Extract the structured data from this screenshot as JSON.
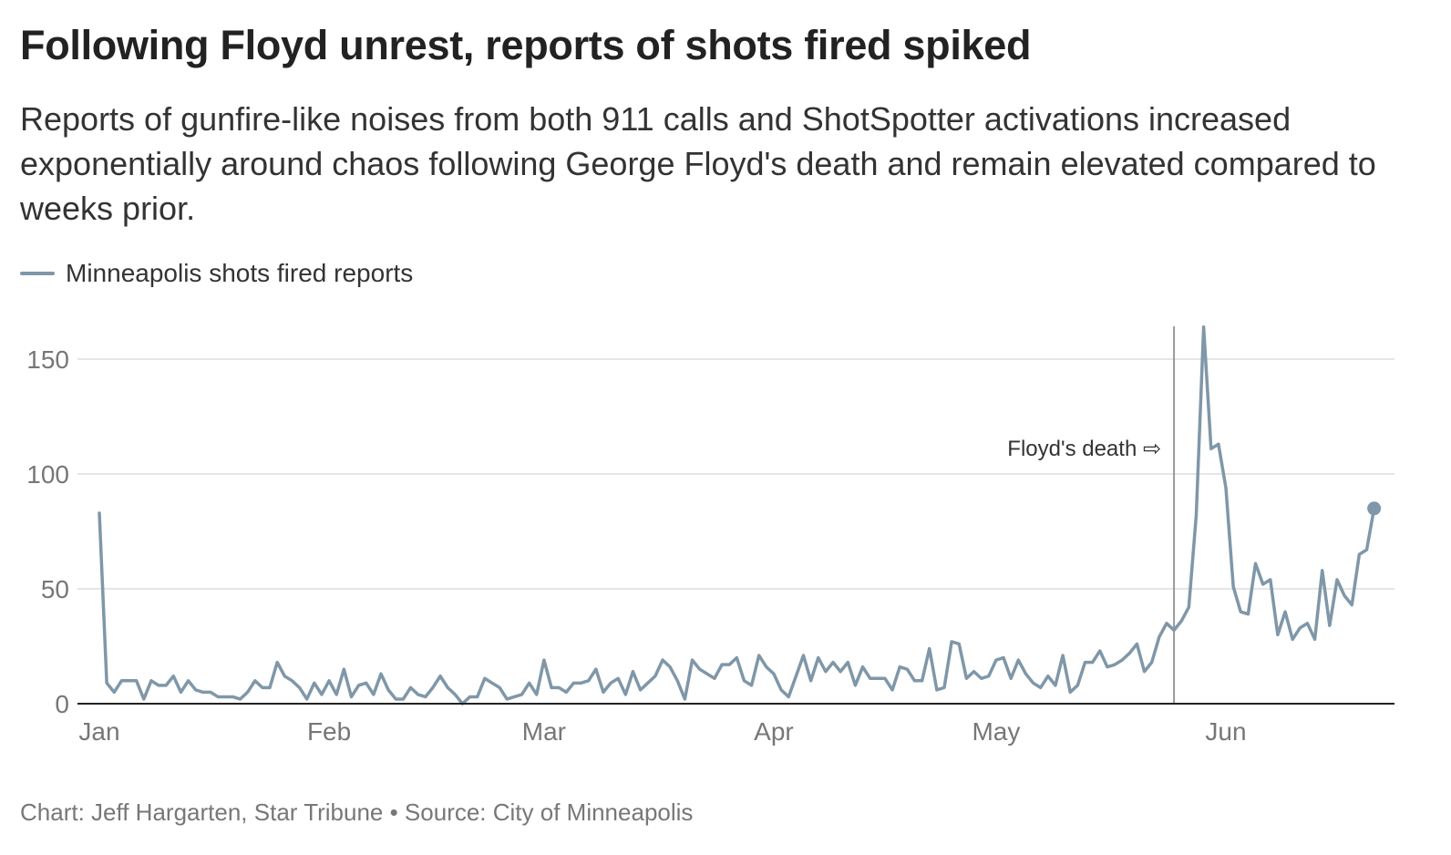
{
  "header": {
    "title": "Following Floyd unrest, reports of shots fired spiked",
    "subtitle": "Reports of gunfire-like noises from both 911 calls and ShotSpotter activations increased exponentially around chaos following George Floyd's death and remain elevated compared to weeks prior."
  },
  "footer": {
    "credit": "Chart: Jeff Hargarten, Star Tribune • Source: City of Minneapolis"
  },
  "colors": {
    "line": "#7f97a8",
    "grid": "#e6e6e6",
    "axis": "#222222",
    "annotation_line": "#999999",
    "tick_text": "#777777"
  },
  "chart_data": {
    "type": "line",
    "title": "Following Floyd unrest, reports of shots fired spiked",
    "xlabel": "",
    "ylabel": "",
    "ylim": [
      0,
      150
    ],
    "yticks": [
      0,
      50,
      100,
      150
    ],
    "x_ticks": [
      {
        "label": "Jan",
        "date": "2020-01-01"
      },
      {
        "label": "Feb",
        "date": "2020-02-01"
      },
      {
        "label": "Mar",
        "date": "2020-03-01"
      },
      {
        "label": "Apr",
        "date": "2020-04-01"
      },
      {
        "label": "May",
        "date": "2020-05-01"
      },
      {
        "label": "Jun",
        "date": "2020-06-01"
      }
    ],
    "grid": true,
    "legend_position": "top-left",
    "end_marker": true,
    "series": [
      {
        "name": "Minneapolis shots fired reports",
        "start_date": "2020-01-01",
        "values": [
          83,
          9,
          5,
          10,
          10,
          10,
          2,
          10,
          8,
          8,
          12,
          5,
          10,
          6,
          5,
          5,
          3,
          3,
          3,
          2,
          5,
          10,
          7,
          7,
          18,
          12,
          10,
          7,
          2,
          9,
          4,
          10,
          4,
          15,
          3,
          8,
          9,
          4,
          13,
          6,
          2,
          2,
          7,
          4,
          3,
          7,
          12,
          7,
          4,
          0,
          3,
          3,
          11,
          9,
          7,
          2,
          3,
          4,
          9,
          4,
          19,
          7,
          7,
          5,
          9,
          9,
          10,
          15,
          5,
          9,
          11,
          4,
          14,
          6,
          9,
          12,
          19,
          16,
          10,
          2,
          19,
          15,
          13,
          11,
          17,
          17,
          20,
          10,
          8,
          21,
          16,
          13,
          6,
          3,
          12,
          21,
          10,
          20,
          14,
          18,
          14,
          18,
          8,
          16,
          11,
          11,
          11,
          6,
          16,
          15,
          10,
          10,
          24,
          6,
          7,
          27,
          26,
          11,
          14,
          11,
          12,
          19,
          20,
          11,
          19,
          13,
          9,
          7,
          12,
          8,
          21,
          5,
          8,
          18,
          18,
          23,
          16,
          17,
          19,
          22,
          26,
          14,
          18,
          29,
          35,
          32,
          36,
          42,
          82,
          164,
          111,
          113,
          94,
          51,
          40,
          39,
          61,
          52,
          54,
          30,
          40,
          28,
          33,
          35,
          28,
          58,
          34,
          54,
          47,
          43,
          65,
          67,
          85
        ]
      }
    ],
    "annotations": [
      {
        "label": "Floyd's death",
        "date": "2020-05-25",
        "arrow": "⇨"
      }
    ]
  }
}
